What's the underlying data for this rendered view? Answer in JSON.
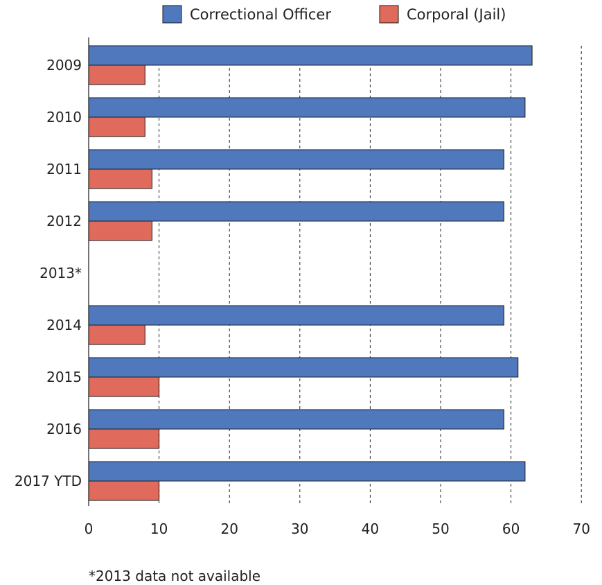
{
  "chart_data": {
    "type": "bar",
    "orientation": "horizontal",
    "categories": [
      "2009",
      "2010",
      "2011",
      "2012",
      "2013*",
      "2014",
      "2015",
      "2016",
      "2017 YTD"
    ],
    "series": [
      {
        "name": "Correctional Officer",
        "color": "#5079bd",
        "values": [
          63,
          62,
          59,
          59,
          null,
          59,
          61,
          59,
          62
        ]
      },
      {
        "name": "Corporal (Jail)",
        "color": "#e06a5b",
        "values": [
          8,
          8,
          9,
          9,
          null,
          8,
          10,
          10,
          10
        ]
      }
    ],
    "xlim": [
      0,
      70
    ],
    "xticks": [
      "0",
      "10",
      "20",
      "30",
      "40",
      "50",
      "60",
      "70"
    ],
    "grid": "vertical dashed",
    "legend_position": "top",
    "footnote": "*2013 data not available"
  }
}
